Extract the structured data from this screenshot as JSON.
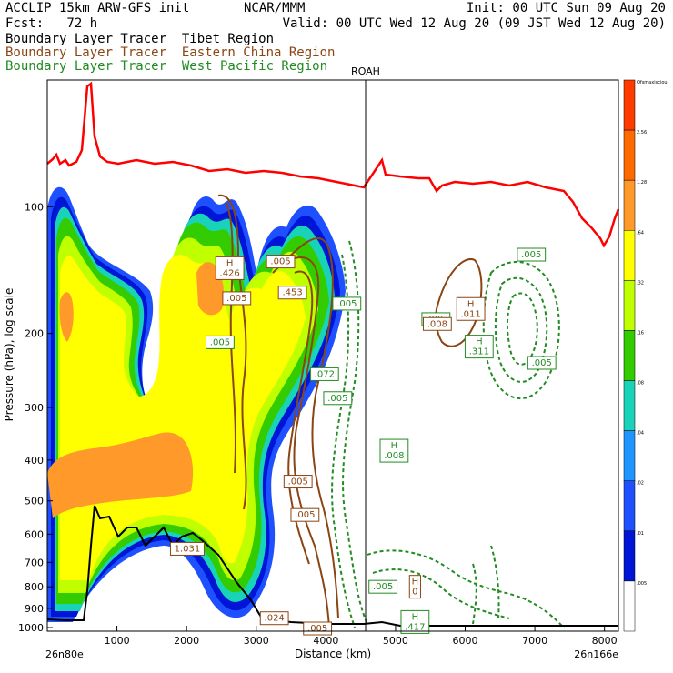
{
  "header": {
    "line1_left": "ACCLIP 15km ARW-GFS init",
    "line1_mid": "NCAR/MMM",
    "line1_right": "Init: 00 UTC Sun 09 Aug 20",
    "line2_left": "Fcst:   72 h",
    "line2_right": "Valid: 00 UTC Wed 12 Aug 20 (09 JST Wed 12 Aug 20)",
    "legend": [
      {
        "label": "Boundary Layer Tracer  Tibet Region",
        "color": "#000000"
      },
      {
        "label": "Boundary Layer Tracer  Eastern China Region",
        "color": "#8B4513"
      },
      {
        "label": "Boundary Layer Tracer  West Pacific Region",
        "color": "#228B22"
      }
    ]
  },
  "chart_data": {
    "type": "cross-section",
    "xlabel": "Distance (km)",
    "ylabel": "Pressure (hPa), log scale",
    "x_ticks": [
      1000,
      2000,
      3000,
      4000,
      5000,
      6000,
      7000,
      8000
    ],
    "y_ticks": [
      100,
      200,
      300,
      400,
      500,
      600,
      700,
      800,
      900,
      1000
    ],
    "xlim": [
      0,
      8200
    ],
    "ylim": [
      1020,
      50
    ],
    "y_scale": "log",
    "left_endpoint": "26n80e",
    "right_endpoint": "26n166e",
    "marker_line": {
      "label": "ROAH",
      "x_km": 4550
    },
    "colorbar": {
      "labels": [
        "Ofsmaxisciou",
        "2.56",
        "1.28",
        ".64",
        ".32",
        ".16",
        ".08",
        ".04",
        ".02",
        ".01",
        ".005"
      ],
      "colors": [
        "#ff3b00",
        "#ff6a00",
        "#ff9a2a",
        "#ffff00",
        "#bfff00",
        "#33cc00",
        "#19d3b8",
        "#1f95ff",
        "#1f50ff",
        "#0015d6",
        "#ffffff"
      ]
    },
    "contour_labels": [
      {
        "text": "H\n.426",
        "color": "#8B4513",
        "x_km": 2620,
        "p_hpa": 140
      },
      {
        "text": ".005",
        "color": "#8B4513",
        "x_km": 2720,
        "p_hpa": 165
      },
      {
        "text": ".005",
        "color": "#8B4513",
        "x_km": 3350,
        "p_hpa": 135
      },
      {
        "text": ".453",
        "color": "#8B4513",
        "x_km": 3520,
        "p_hpa": 160
      },
      {
        "text": ".005",
        "color": "#228B22",
        "x_km": 2480,
        "p_hpa": 210
      },
      {
        "text": ".005",
        "color": "#228B22",
        "x_km": 4300,
        "p_hpa": 170
      },
      {
        "text": ".072",
        "color": "#228B22",
        "x_km": 3980,
        "p_hpa": 250
      },
      {
        "text": ".005",
        "color": "#228B22",
        "x_km": 4170,
        "p_hpa": 285
      },
      {
        "text": ".005",
        "color": "#8B4513",
        "x_km": 3600,
        "p_hpa": 450
      },
      {
        "text": ".005",
        "color": "#8B4513",
        "x_km": 3700,
        "p_hpa": 540
      },
      {
        "text": "1.031",
        "color": "#8B4513",
        "x_km": 2010,
        "p_hpa": 650
      },
      {
        "text": ".024",
        "color": "#8B4513",
        "x_km": 3260,
        "p_hpa": 950
      },
      {
        "text": ".005",
        "color": "#8B4513",
        "x_km": 3880,
        "p_hpa": 1005
      },
      {
        "text": ".005",
        "color": "#228B22",
        "x_km": 5580,
        "p_hpa": 185
      },
      {
        "text": ".008",
        "color": "#8B4513",
        "x_km": 5600,
        "p_hpa": 190
      },
      {
        "text": "H\n.011",
        "color": "#8B4513",
        "x_km": 6080,
        "p_hpa": 175
      },
      {
        "text": "H\n.311",
        "color": "#228B22",
        "x_km": 6200,
        "p_hpa": 215
      },
      {
        "text": ".005",
        "color": "#228B22",
        "x_km": 6950,
        "p_hpa": 130
      },
      {
        "text": ".005",
        "color": "#228B22",
        "x_km": 7100,
        "p_hpa": 235
      },
      {
        "text": "H\n.008",
        "color": "#228B22",
        "x_km": 4980,
        "p_hpa": 380
      },
      {
        "text": ".005",
        "color": "#228B22",
        "x_km": 4820,
        "p_hpa": 800
      },
      {
        "text": "H\n0",
        "color": "#8B4513",
        "x_km": 5280,
        "p_hpa": 800
      },
      {
        "text": "H\n.417",
        "color": "#228B22",
        "x_km": 5280,
        "p_hpa": 970
      }
    ]
  }
}
